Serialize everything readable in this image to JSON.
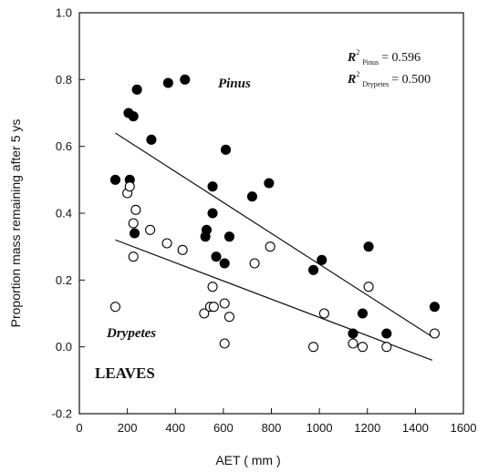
{
  "chart_data": {
    "type": "scatter",
    "xlabel": "AET ( mm )",
    "ylabel": "Proportion mass remaining after 5 ys",
    "xlim": [
      0,
      1600
    ],
    "ylim": [
      -0.2,
      1.0
    ],
    "x_ticks": [
      "0",
      "200",
      "400",
      "600",
      "800",
      "1000",
      "1200",
      "1400",
      "1600"
    ],
    "y_ticks": [
      "-0.2",
      "0.0",
      "0.2",
      "0.4",
      "0.6",
      "0.8",
      "1.0"
    ],
    "grid": false,
    "panel_label": "LEAVES",
    "series": [
      {
        "name": "Pinus",
        "marker": "filled-circle",
        "color": "#000000",
        "points": [
          [
            150,
            0.5
          ],
          [
            205,
            0.7
          ],
          [
            210,
            0.5
          ],
          [
            225,
            0.69
          ],
          [
            230,
            0.34
          ],
          [
            240,
            0.77
          ],
          [
            300,
            0.62
          ],
          [
            370,
            0.79
          ],
          [
            440,
            0.8
          ],
          [
            525,
            0.33
          ],
          [
            530,
            0.35
          ],
          [
            555,
            0.48
          ],
          [
            555,
            0.4
          ],
          [
            570,
            0.27
          ],
          [
            605,
            0.25
          ],
          [
            610,
            0.59
          ],
          [
            625,
            0.33
          ],
          [
            720,
            0.45
          ],
          [
            790,
            0.49
          ],
          [
            975,
            0.23
          ],
          [
            1010,
            0.26
          ],
          [
            1140,
            0.04
          ],
          [
            1180,
            0.1
          ],
          [
            1205,
            0.3
          ],
          [
            1280,
            0.04
          ],
          [
            1480,
            0.12
          ]
        ],
        "trend": {
          "x": [
            150,
            1470
          ],
          "y": [
            0.64,
            0.03
          ]
        }
      },
      {
        "name": "Drypetes",
        "marker": "open-circle",
        "color": "#000000",
        "points": [
          [
            150,
            0.12
          ],
          [
            200,
            0.46
          ],
          [
            210,
            0.48
          ],
          [
            225,
            0.37
          ],
          [
            225,
            0.27
          ],
          [
            235,
            0.41
          ],
          [
            295,
            0.35
          ],
          [
            365,
            0.31
          ],
          [
            430,
            0.29
          ],
          [
            520,
            0.1
          ],
          [
            545,
            0.12
          ],
          [
            555,
            0.18
          ],
          [
            560,
            0.12
          ],
          [
            605,
            0.13
          ],
          [
            605,
            0.01
          ],
          [
            625,
            0.09
          ],
          [
            730,
            0.25
          ],
          [
            795,
            0.3
          ],
          [
            975,
            0.0
          ],
          [
            1020,
            0.1
          ],
          [
            1140,
            0.01
          ],
          [
            1180,
            0.0
          ],
          [
            1205,
            0.18
          ],
          [
            1280,
            0.0
          ],
          [
            1480,
            0.04
          ]
        ],
        "trend": {
          "x": [
            150,
            1470
          ],
          "y": [
            0.32,
            -0.04
          ]
        }
      }
    ],
    "annotations": {
      "pinus_label": "Pinus",
      "drypetes_label": "Drypetes",
      "r2_symbol": "R",
      "r2_power": "2",
      "r2_pinus_sub": "Pinus",
      "r2_pinus_value": "= 0.596",
      "r2_drypetes_sub": "Drypetes",
      "r2_drypetes_value": "= 0.500"
    }
  }
}
